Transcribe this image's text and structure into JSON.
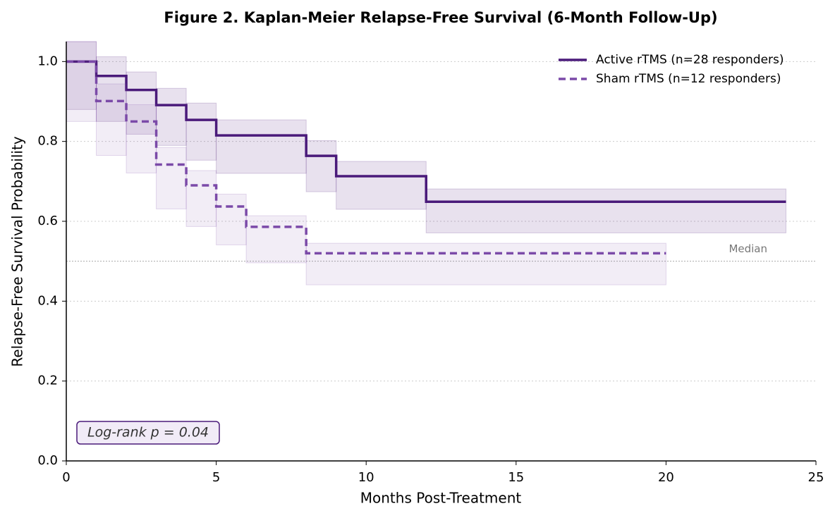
{
  "chart_data": {
    "type": "step",
    "title": "Figure 2. Kaplan-Meier Relapse-Free Survival (6-Month Follow-Up)",
    "xlabel": "Months Post-Treatment",
    "ylabel": "Relapse-Free Survival Probability",
    "xlim": [
      0,
      25
    ],
    "ylim": [
      0,
      1.05
    ],
    "xticks": [
      0,
      5,
      10,
      15,
      20,
      25
    ],
    "yticks": [
      {
        "value": 0,
        "label": "0.0"
      },
      0.2,
      0.4,
      0.6,
      0.8,
      {
        "value": 1,
        "label": "1.0"
      }
    ],
    "grid": true,
    "legend": "upper right",
    "reference_line": {
      "value": 0.5,
      "label": "Median"
    },
    "annotation": "Log-rank p = 0.04",
    "series": [
      {
        "name": "Active rTMS (n=28 responders)",
        "color": "#4a1a7a",
        "linestyle": "solid",
        "x": [
          0,
          1,
          2,
          3,
          4,
          5,
          8,
          9,
          12,
          24
        ],
        "values": [
          1.0,
          0.964,
          0.929,
          0.891,
          0.854,
          0.815,
          0.764,
          0.713,
          0.649,
          0.649
        ],
        "lower": [
          0.88,
          0.85,
          0.818,
          0.79,
          0.753,
          0.72,
          0.674,
          0.63,
          0.571,
          0.571
        ],
        "upper": [
          1.05,
          1.012,
          0.974,
          0.933,
          0.896,
          0.854,
          0.802,
          0.75,
          0.681,
          0.681
        ]
      },
      {
        "name": "Sham rTMS (n=12 responders)",
        "color": "#7b4aa8",
        "linestyle": "dashed",
        "x": [
          0,
          1,
          2,
          3,
          4,
          5,
          6,
          8,
          20
        ],
        "values": [
          1.0,
          0.901,
          0.85,
          0.742,
          0.69,
          0.637,
          0.586,
          0.52,
          0.52
        ],
        "lower": [
          0.85,
          0.765,
          0.721,
          0.631,
          0.587,
          0.541,
          0.496,
          0.441,
          0.441
        ],
        "upper": [
          1.05,
          0.944,
          0.892,
          0.785,
          0.727,
          0.668,
          0.614,
          0.545,
          0.545
        ]
      }
    ]
  }
}
